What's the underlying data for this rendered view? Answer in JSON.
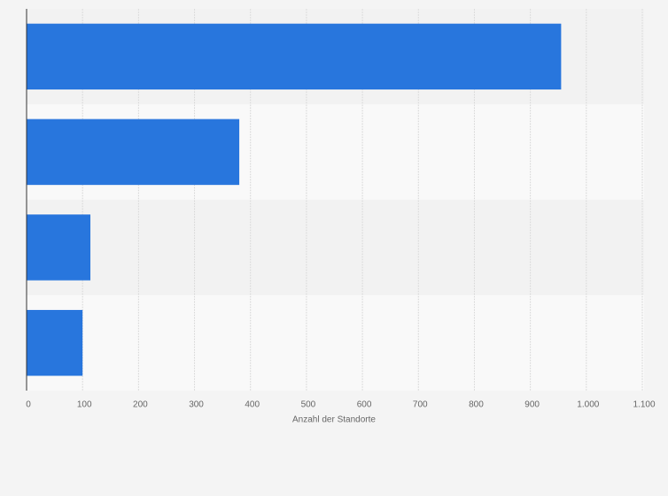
{
  "chart_data": {
    "type": "bar",
    "orientation": "horizontal",
    "categories": [
      null,
      null,
      null,
      null
    ],
    "values": [
      955,
      380,
      114,
      100
    ],
    "color": "#2876dd",
    "xlabel": "Anzahl der Standorte",
    "xlim": [
      0,
      1100
    ],
    "xticks": [
      0,
      100,
      200,
      300,
      400,
      500,
      600,
      700,
      800,
      900,
      {
        "value": 1000,
        "label": "1.000"
      },
      {
        "value": 1100,
        "label": "1.100"
      }
    ],
    "grid": true
  }
}
